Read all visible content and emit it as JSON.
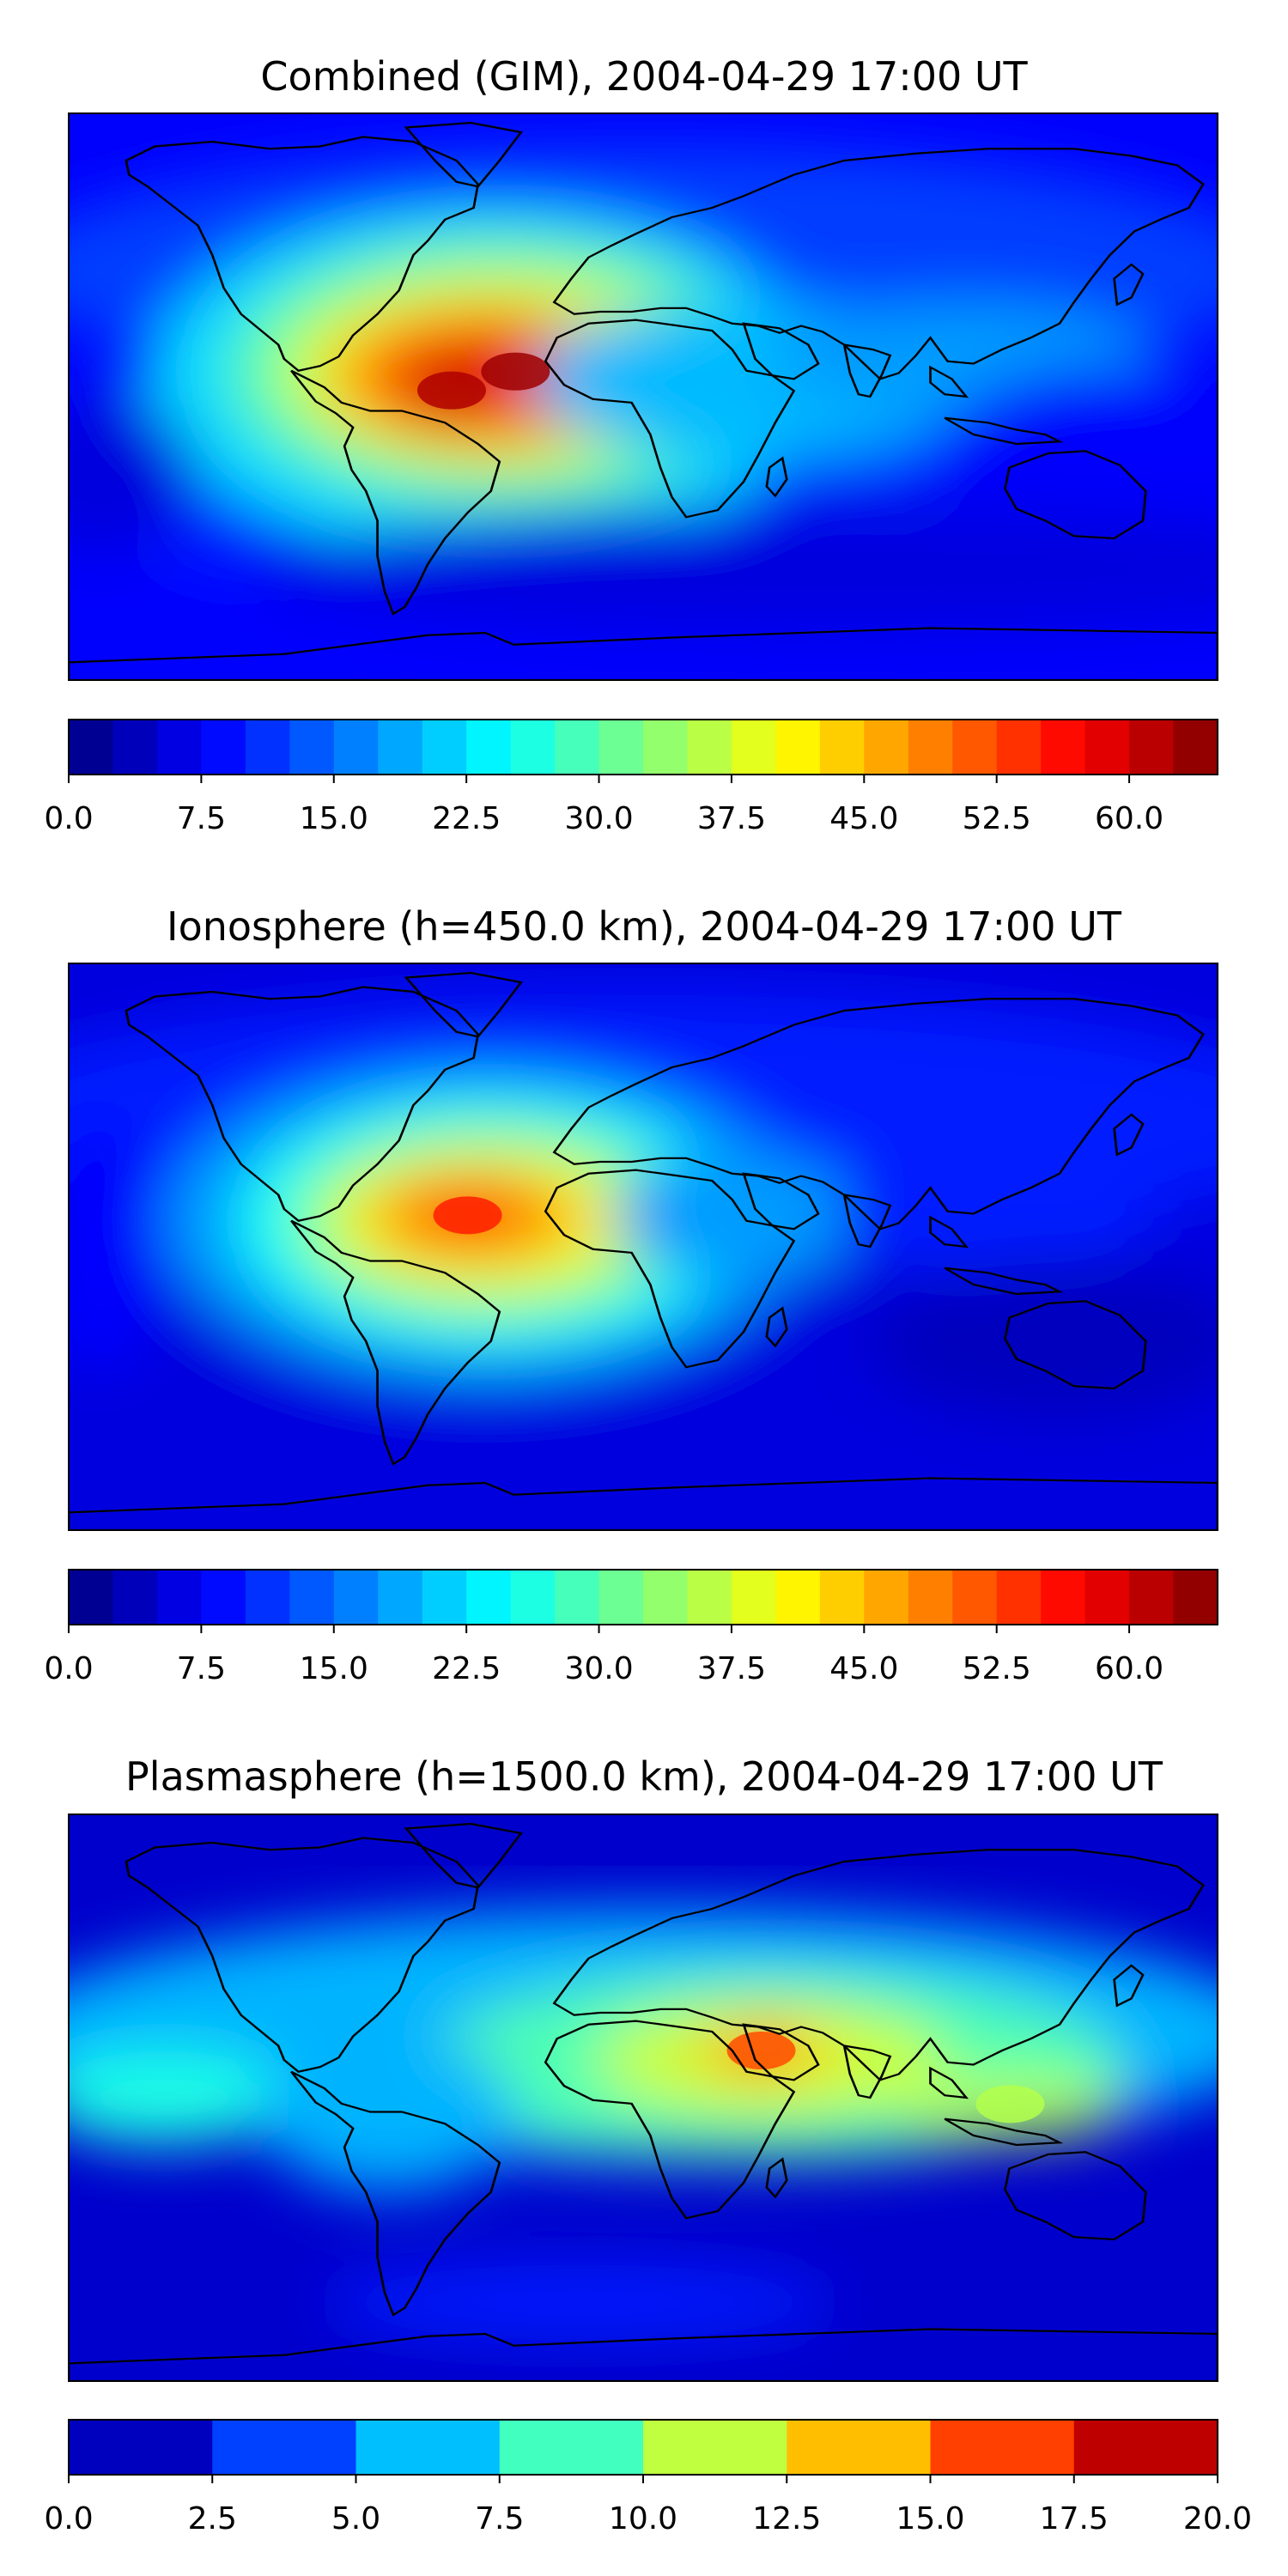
{
  "panels": [
    {
      "title": "Combined (GIM), 2004-04-29 17:00 UT",
      "colorbar": {
        "ticks": [
          "0.0",
          "7.5",
          "15.0",
          "22.5",
          "30.0",
          "37.5",
          "45.0",
          "52.5",
          "60.0"
        ],
        "tick_values": [
          0,
          7.5,
          15,
          22.5,
          30,
          37.5,
          45,
          52.5,
          60
        ],
        "range": [
          0,
          65
        ],
        "step": 2.5
      }
    },
    {
      "title": "Ionosphere  (h=450.0 km), 2004-04-29 17:00 UT",
      "colorbar": {
        "ticks": [
          "0.0",
          "7.5",
          "15.0",
          "22.5",
          "30.0",
          "37.5",
          "45.0",
          "52.5",
          "60.0"
        ],
        "tick_values": [
          0,
          7.5,
          15,
          22.5,
          30,
          37.5,
          45,
          52.5,
          60
        ],
        "range": [
          0,
          65
        ],
        "step": 2.5
      }
    },
    {
      "title": "Plasmasphere (h=1500.0 km), 2004-04-29 17:00 UT",
      "colorbar": {
        "ticks": [
          "0.0",
          "2.5",
          "5.0",
          "7.5",
          "10.0",
          "12.5",
          "15.0",
          "17.5",
          "20.0"
        ],
        "tick_values": [
          0,
          2.5,
          5,
          7.5,
          10,
          12.5,
          15,
          17.5,
          20
        ],
        "range": [
          0,
          20
        ],
        "step": 2.5
      }
    }
  ],
  "chart_data": [
    {
      "type": "heatmap",
      "title": "Combined (GIM), 2004-04-29 17:00 UT",
      "colormap": "jet",
      "projection": "plate-carree",
      "levels_range": [
        0,
        65
      ],
      "level_step": 2.5,
      "maxima": [
        {
          "lon": -60,
          "lat": 2,
          "value": 62
        },
        {
          "lon": -40,
          "lat": 8,
          "value": 63
        }
      ],
      "colorbar_ticks": [
        0,
        7.5,
        15,
        22.5,
        30,
        37.5,
        45,
        52.5,
        60
      ]
    },
    {
      "type": "heatmap",
      "title": "Ionosphere  (h=450.0 km), 2004-04-29 17:00 UT",
      "colormap": "jet",
      "projection": "plate-carree",
      "levels_range": [
        0,
        65
      ],
      "level_step": 2.5,
      "maxima": [
        {
          "lon": -55,
          "lat": 10,
          "value": 55
        }
      ],
      "colorbar_ticks": [
        0,
        7.5,
        15,
        22.5,
        30,
        37.5,
        45,
        52.5,
        60
      ]
    },
    {
      "type": "heatmap",
      "title": "Plasmasphere (h=1500.0 km), 2004-04-29 17:00 UT",
      "colormap": "jet",
      "projection": "plate-carree",
      "levels_range": [
        0,
        20
      ],
      "level_step": 2.5,
      "maxima": [
        {
          "lon": 37,
          "lat": 15,
          "value": 16
        },
        {
          "lon": 115,
          "lat": -2,
          "value": 11
        }
      ],
      "colorbar_ticks": [
        0,
        2.5,
        5,
        7.5,
        10,
        12.5,
        15,
        17.5,
        20
      ]
    }
  ]
}
